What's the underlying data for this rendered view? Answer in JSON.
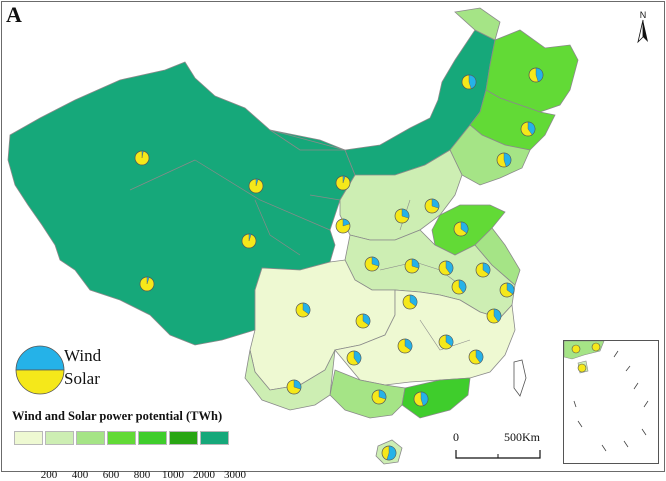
{
  "panel_label": "A",
  "north_label": "N",
  "pie_legend": {
    "wind": "Wind",
    "solar": "Solar"
  },
  "legend": {
    "title": "Wind and Solar power potential (TWh)",
    "ticks": [
      "200",
      "400",
      "600",
      "800",
      "1000",
      "2000",
      "3000"
    ],
    "colors": [
      "#eef9d2",
      "#cdeeb3",
      "#a5e486",
      "#62da36",
      "#3fcd2c",
      "#29a614",
      "#16a87a"
    ]
  },
  "scale_bar": {
    "start": "0",
    "end": "500Km"
  },
  "colors": {
    "wind": "#25b2e8",
    "solar": "#f5e81a",
    "border": "#8a8a8a"
  },
  "chart_data": {
    "type": "map",
    "title": "",
    "pie_series": [
      "Wind",
      "Solar"
    ],
    "legend_classes": [
      "200",
      "400",
      "600",
      "800",
      "1000",
      "2000",
      "3000"
    ]
  }
}
